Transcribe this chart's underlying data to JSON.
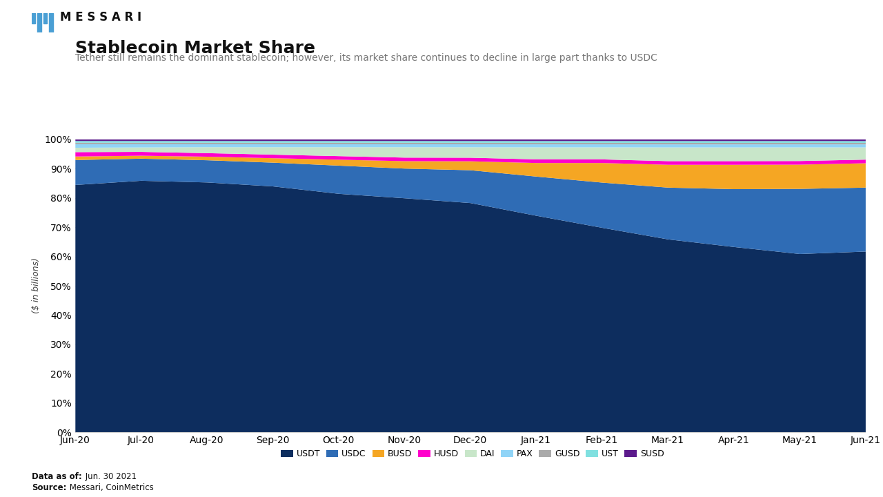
{
  "title": "Stablecoin Market Share",
  "subtitle": "Tether still remains the dominant stablecoin; however, its market share continues to decline in large part thanks to USDC",
  "ylabel": "($ in billions)",
  "data_as_of_label": "Data as of:",
  "data_as_of_value": " Jun. 30 2021",
  "source_label": "Source:",
  "source_value": " Messari, CoinMetrics",
  "background_color": "#ffffff",
  "colors": {
    "USDT": "#0d2d5e",
    "USDC": "#2f6cb5",
    "BUSD": "#f5a623",
    "HUSD": "#ff00cc",
    "DAI": "#c8e6c9",
    "PAX": "#90d4f7",
    "GUSD": "#aaaaaa",
    "UST": "#80e0e0",
    "SUSD": "#5c1a8c"
  },
  "x_labels": [
    "Jun-20",
    "Jul-20",
    "Aug-20",
    "Sep-20",
    "Oct-20",
    "Nov-20",
    "Dec-20",
    "Jan-21",
    "Feb-21",
    "Mar-21",
    "Apr-21",
    "May-21",
    "Jun-21"
  ],
  "series": {
    "USDT": [
      84.5,
      85.5,
      84.5,
      83.0,
      80.5,
      79.0,
      77.0,
      72.0,
      68.0,
      63.5,
      61.0,
      59.0,
      59.5
    ],
    "USDC": [
      8.5,
      7.5,
      7.5,
      8.0,
      9.5,
      10.0,
      11.0,
      13.0,
      15.0,
      17.0,
      19.0,
      21.5,
      21.0
    ],
    "BUSD": [
      1.2,
      1.0,
      1.2,
      1.5,
      2.0,
      2.5,
      3.0,
      4.5,
      6.5,
      7.5,
      8.0,
      8.0,
      8.0
    ],
    "HUSD": [
      1.5,
      1.3,
      1.2,
      1.2,
      1.2,
      1.2,
      1.2,
      1.2,
      1.2,
      1.2,
      1.2,
      1.2,
      1.2
    ],
    "DAI": [
      1.5,
      1.5,
      2.0,
      2.5,
      3.0,
      3.5,
      3.5,
      4.0,
      4.0,
      4.5,
      4.5,
      4.5,
      4.0
    ],
    "PAX": [
      1.2,
      1.1,
      1.0,
      1.0,
      1.0,
      1.0,
      1.0,
      1.0,
      1.0,
      1.0,
      1.0,
      1.0,
      1.0
    ],
    "GUSD": [
      0.5,
      0.5,
      0.5,
      0.5,
      0.5,
      0.5,
      0.5,
      0.5,
      0.5,
      0.5,
      0.5,
      0.5,
      0.5
    ],
    "UST": [
      0.6,
      0.6,
      0.6,
      0.6,
      0.6,
      0.6,
      0.6,
      0.6,
      0.6,
      0.6,
      0.6,
      0.6,
      0.6
    ],
    "SUSD": [
      0.5,
      0.5,
      0.5,
      0.5,
      0.5,
      0.5,
      0.5,
      0.5,
      0.5,
      0.5,
      0.5,
      0.5,
      0.5
    ]
  },
  "messari_logo_color": "#4a9fd4",
  "title_fontsize": 18,
  "subtitle_fontsize": 10,
  "tick_fontsize": 10,
  "ylabel_fontsize": 9
}
